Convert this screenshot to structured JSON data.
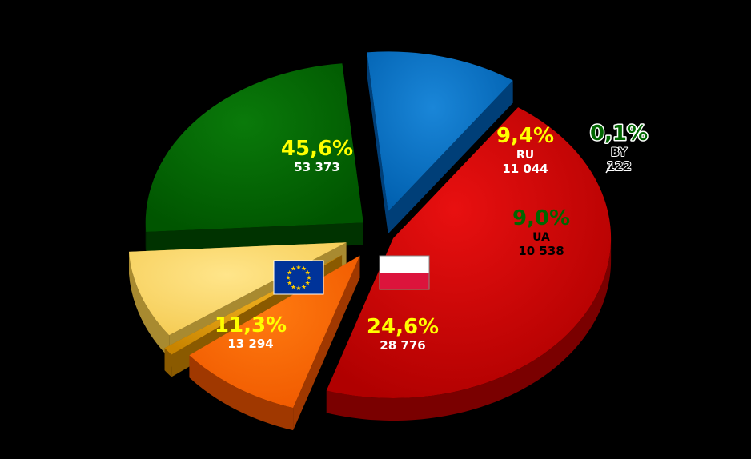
{
  "chart_data": {
    "type": "pie",
    "title": "",
    "slices": [
      {
        "label": "",
        "value": 53373,
        "percent": "45,6%",
        "value_text": "53 373",
        "color": "#c00000",
        "flag": ""
      },
      {
        "label": "RU",
        "value": 11044,
        "percent": "9,4%",
        "value_text": "11 044",
        "color": "#ff6600",
        "flag": ""
      },
      {
        "label": "BY",
        "value": 122,
        "percent": "0,1%",
        "value_text": "122",
        "color": "#e8a000",
        "flag": ""
      },
      {
        "label": "UA",
        "value": 10538,
        "percent": "9,0%",
        "value_text": "10 538",
        "color": "#ffd966",
        "flag": ""
      },
      {
        "label": "",
        "value": 28776,
        "percent": "24,6%",
        "value_text": "28 776",
        "color": "#006600",
        "flag": "poland-flag"
      },
      {
        "label": "",
        "value": 13294,
        "percent": "11,3%",
        "value_text": "13 294",
        "color": "#0070c0",
        "flag": "eu-flag"
      }
    ],
    "legend": "none",
    "exploded": true,
    "three_d": true
  },
  "colors": {
    "background": "#000000",
    "yellow_text": "#ffff00",
    "green_text": "#006600",
    "white_text": "#ffffff",
    "black_text": "#000000"
  }
}
